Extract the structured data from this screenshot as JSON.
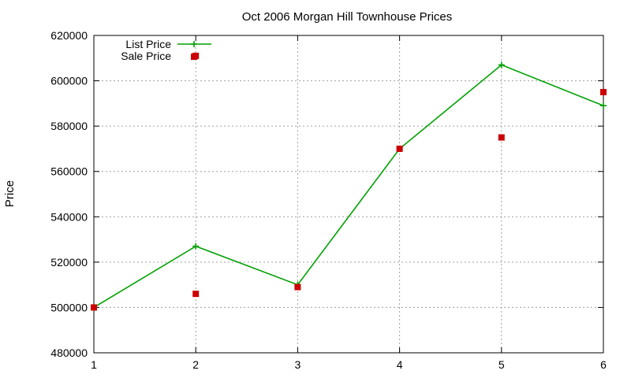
{
  "chart_data": {
    "type": "line",
    "title": "Oct 2006 Morgan Hill Townhouse Prices",
    "xlabel": "",
    "ylabel": "Price",
    "xlim": [
      1,
      6
    ],
    "ylim": [
      480000,
      620000
    ],
    "x_ticks": [
      "1",
      "2",
      "3",
      "4",
      "5",
      "6"
    ],
    "y_ticks": [
      "480000",
      "500000",
      "520000",
      "540000",
      "560000",
      "580000",
      "600000",
      "620000"
    ],
    "grid": true,
    "legend_position": "top-left",
    "series": [
      {
        "name": "List Price",
        "style": "line-with-plus-markers",
        "color": "#00a000",
        "points": [
          {
            "x": 1,
            "y": 500000
          },
          {
            "x": 2,
            "y": 527000
          },
          {
            "x": 3,
            "y": 510000
          },
          {
            "x": 4,
            "y": 570000
          },
          {
            "x": 5,
            "y": 607000
          },
          {
            "x": 6,
            "y": 589000
          }
        ]
      },
      {
        "name": "Sale Price",
        "style": "square-markers",
        "color": "#cc0000",
        "points": [
          {
            "x": 1,
            "y": 500000
          },
          {
            "x": 2,
            "y": 611000
          },
          {
            "x": 2,
            "y": 506000
          },
          {
            "x": 3,
            "y": 509000
          },
          {
            "x": 4,
            "y": 570000
          },
          {
            "x": 5,
            "y": 575000
          },
          {
            "x": 6,
            "y": 595000
          }
        ]
      }
    ]
  }
}
